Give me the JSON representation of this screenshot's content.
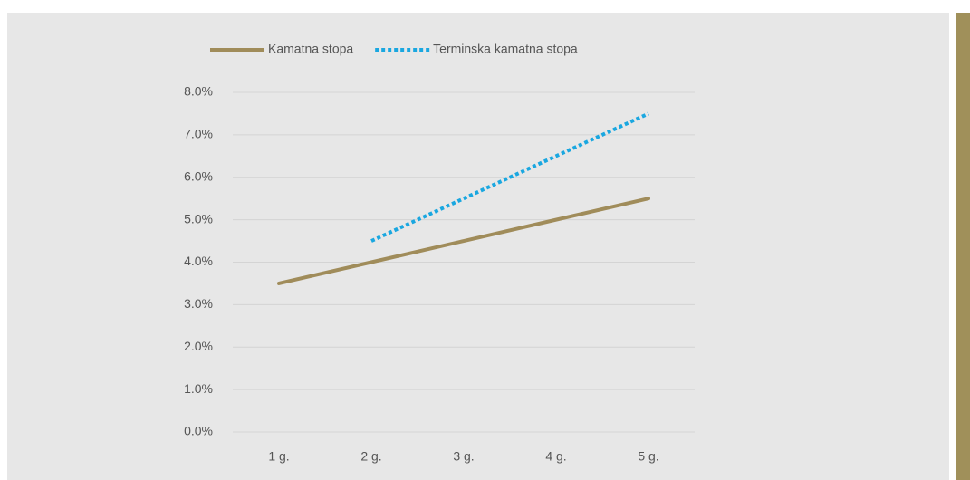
{
  "chart_data": {
    "type": "line",
    "categories": [
      "1 g.",
      "2 g.",
      "3 g.",
      "4 g.",
      "5 g."
    ],
    "series": [
      {
        "name": "Kamatna stopa",
        "color": "#a08c5a",
        "dash": false,
        "values": [
          3.5,
          4.0,
          4.5,
          5.0,
          5.5
        ]
      },
      {
        "name": "Terminska kamatna stopa",
        "color": "#1aa7e0",
        "dash": true,
        "values": [
          null,
          4.5,
          5.5,
          6.5,
          7.5
        ]
      }
    ],
    "ylim": [
      0,
      8
    ],
    "yticks": [
      {
        "value": 0,
        "label": "0.0%"
      },
      {
        "value": 1,
        "label": "1.0%"
      },
      {
        "value": 2,
        "label": "2.0%"
      },
      {
        "value": 3,
        "label": "3.0%"
      },
      {
        "value": 4,
        "label": "4.0%"
      },
      {
        "value": 5,
        "label": "5.0%"
      },
      {
        "value": 6,
        "label": "6.0%"
      },
      {
        "value": 7,
        "label": "7.0%"
      },
      {
        "value": 8,
        "label": "8.0%"
      }
    ],
    "grid": true,
    "legend": "top"
  }
}
